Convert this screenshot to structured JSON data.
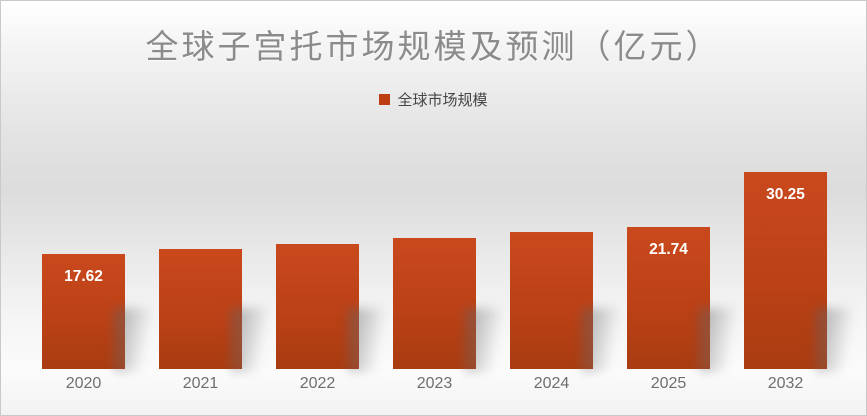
{
  "chart": {
    "title": "全球子宫托市场规模及预测（亿元）",
    "legend_label": "全球市场规模"
  },
  "chart_data": {
    "type": "bar",
    "title": "全球子宫托市场规模及预测（亿元）",
    "legend": [
      "全球市场规模"
    ],
    "legend_position": "top-center",
    "categories": [
      "2020",
      "2021",
      "2022",
      "2023",
      "2024",
      "2025",
      "2032"
    ],
    "series": [
      {
        "name": "全球市场规模",
        "values": [
          17.62,
          18.35,
          19.15,
          20.1,
          20.95,
          21.74,
          30.25
        ],
        "data_labels": [
          "17.62",
          "",
          "",
          "",
          "",
          "21.74",
          "30.25"
        ]
      }
    ],
    "ylim": [
      0,
      34.8
    ],
    "grid": false,
    "axis_line": false,
    "colors": {
      "bar_top": "#c9491d",
      "bar_bottom": "#a93c11",
      "legend_swatch": "#bc3e12",
      "data_label": "#ffffff",
      "axis_label": "#6e6e6e",
      "title": "#8b8b8b"
    }
  }
}
